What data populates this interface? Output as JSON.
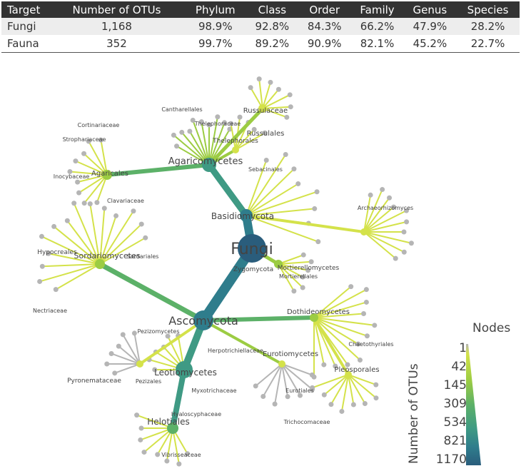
{
  "summary": {
    "headers": [
      "Target",
      "Number of OTUs",
      "Phylum",
      "Class",
      "Order",
      "Family",
      "Genus",
      "Species"
    ],
    "rows": [
      [
        "Fungi",
        "1,168",
        "98.9%",
        "92.8%",
        "84.3%",
        "66.2%",
        "47.9%",
        "28.2%"
      ],
      [
        "Fauna",
        "352",
        "99.7%",
        "89.2%",
        "90.9%",
        "82.1%",
        "45.2%",
        "22.7%"
      ]
    ]
  },
  "tree": {
    "root": "Fungi",
    "labels": [
      "Basidiomycota",
      "Ascomycota",
      "Agaricomycetes",
      "Agaricales",
      "Russulaceae",
      "Russulales",
      "Thelephorales",
      "Thelephoraceae",
      "Sordariomycetes",
      "Hypocreales",
      "Dothideomycetes",
      "Leotiomycetes",
      "Helotiales",
      "Eurotiomycetes",
      "Pleosporales",
      "Zygomycota",
      "Mortierellomycetes",
      "Mortierellales",
      "Pezizomycetes",
      "Pezizales",
      "Pyronemataceae",
      "Sordariales",
      "Eurotiales",
      "Trichocomaceae",
      "Chaetothyriales",
      "Cortinariaceae",
      "Strophariaceae",
      "Inocybaceae",
      "Clavariaceae",
      "Hyaloscyphaceae",
      "Myxotrichaceae",
      "Vibrisseaceae",
      "Archaeorhizomyces",
      "Sebacinales",
      "Cantharellales",
      "Nectriaceae",
      "Herpotrichiellaceae"
    ]
  },
  "legend": {
    "title": "Nodes",
    "axis_label": "Number of OTUs",
    "ticks": [
      "1",
      "42",
      "145",
      "309",
      "534",
      "821",
      "1170"
    ],
    "colors": [
      "#b5b5b5",
      "#d4e24a",
      "#9ccc43",
      "#5cb168",
      "#3f9a84",
      "#2f7d8c",
      "#2a5d7c"
    ]
  }
}
